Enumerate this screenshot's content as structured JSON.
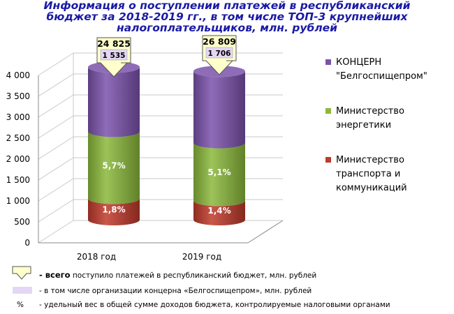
{
  "title_lines": [
    "Информация о поступлении платежей в республиканский",
    "бюджет за 2018-2019 гг., в том числе ТОП-3 крупнейших",
    "налогоплательщиков, млн. рублей"
  ],
  "colors": {
    "transport": "#c0392b",
    "energy": "#8bb83b",
    "concern": "#7b52ab",
    "callout_arrow": "#ffffcc",
    "concern_box": "#e4d7f5",
    "title": "#1a1aa6"
  },
  "chart_data": {
    "type": "bar",
    "subtype": "stacked-3d-cylinder",
    "categories": [
      "2018 год",
      "2019 год"
    ],
    "ylim": [
      0,
      4000
    ],
    "yticks": [
      "0",
      "500",
      "1 000",
      "1 500",
      "2 000",
      "2 500",
      "3 000",
      "3 500",
      "4 000"
    ],
    "series": [
      {
        "name": "Министерство транспорта и коммуникаций",
        "values": [
          510,
          460
        ],
        "data_labels": [
          "1,8%",
          "1,4%"
        ],
        "color": "#c0392b"
      },
      {
        "name": "Министерство энергетики",
        "values": [
          1600,
          1380
        ],
        "data_labels": [
          "5,7%",
          "5,1%"
        ],
        "color": "#8bb83b"
      },
      {
        "name": "КОНЦЕРН \"Белгоспищепром\"",
        "values": [
          1535,
          1706
        ],
        "data_labels": [
          "",
          ""
        ],
        "color": "#7b52ab"
      }
    ],
    "totals": [
      "24 825",
      "26 809"
    ],
    "concern_values": [
      "1 535",
      "1 706"
    ],
    "legend": [
      {
        "label": "КОНЦЕРН \"Белгоспищепром\"",
        "lines": [
          "КОНЦЕРН",
          "\"Белгоспищепром\""
        ],
        "color": "#7b52ab"
      },
      {
        "label": "Министерство энергетики",
        "lines": [
          "Министерство",
          "энергетики"
        ],
        "color": "#8bb83b"
      },
      {
        "label": "Министерство транспорта и коммуникаций",
        "lines": [
          "Министерство",
          "транспорта и",
          "коммуникаций"
        ],
        "color": "#c0392b"
      }
    ],
    "legend_position": "right",
    "grid": true
  },
  "notes": {
    "total_bold": "- всего",
    "total_rest": " поступило платежей в республиканский бюджет, млн. рублей",
    "concern": "- в том числе организации концерна «Белгоспищепром», млн. рублей",
    "percent_symbol": "%",
    "percent": "- удельный вес в общей сумме доходов бюджета, контролируемые налоговыми органами"
  }
}
